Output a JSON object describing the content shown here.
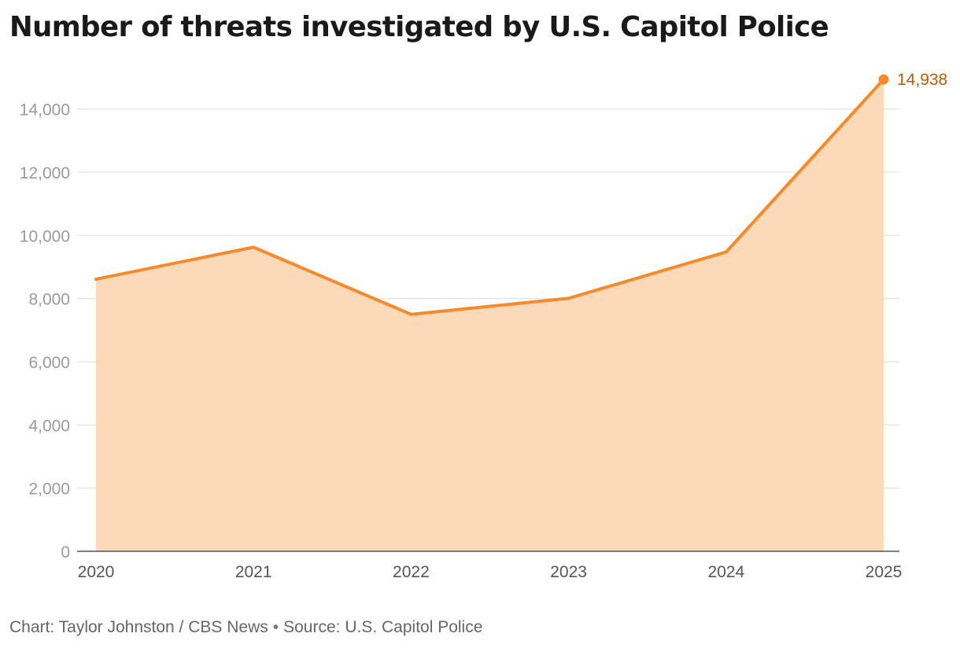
{
  "colors": {
    "line": "#f58a2c",
    "area": "#fcd9b8",
    "label": "#c05a05",
    "axis": "#555555",
    "grid": "#e3e3e3",
    "tick_text": "#9a9a9a",
    "x_tick_text": "#555555"
  },
  "chart_data": {
    "type": "area",
    "title": "Number of threats investigated by U.S. Capitol Police",
    "xlabel": "",
    "ylabel": "",
    "x": [
      "2020",
      "2021",
      "2022",
      "2023",
      "2024",
      "2025"
    ],
    "series": [
      {
        "values": [
          8613,
          9625,
          7501,
          8008,
          9474,
          14938
        ]
      }
    ],
    "ylim": [
      0,
      14938
    ],
    "yticks": [
      0,
      2000,
      4000,
      6000,
      8000,
      10000,
      12000,
      14000
    ],
    "ytick_labels": [
      "0",
      "2,000",
      "4,000",
      "6,000",
      "8,000",
      "10,000",
      "12,000",
      "14,000"
    ],
    "grid": true,
    "legend": "none",
    "annotations": [
      {
        "x": "2025",
        "value": 14938,
        "label": "14,938"
      }
    ]
  },
  "footer": {
    "credit": "Chart: Taylor Johnston / CBS News",
    "separator": "•",
    "source": "Source: U.S. Capitol Police"
  }
}
